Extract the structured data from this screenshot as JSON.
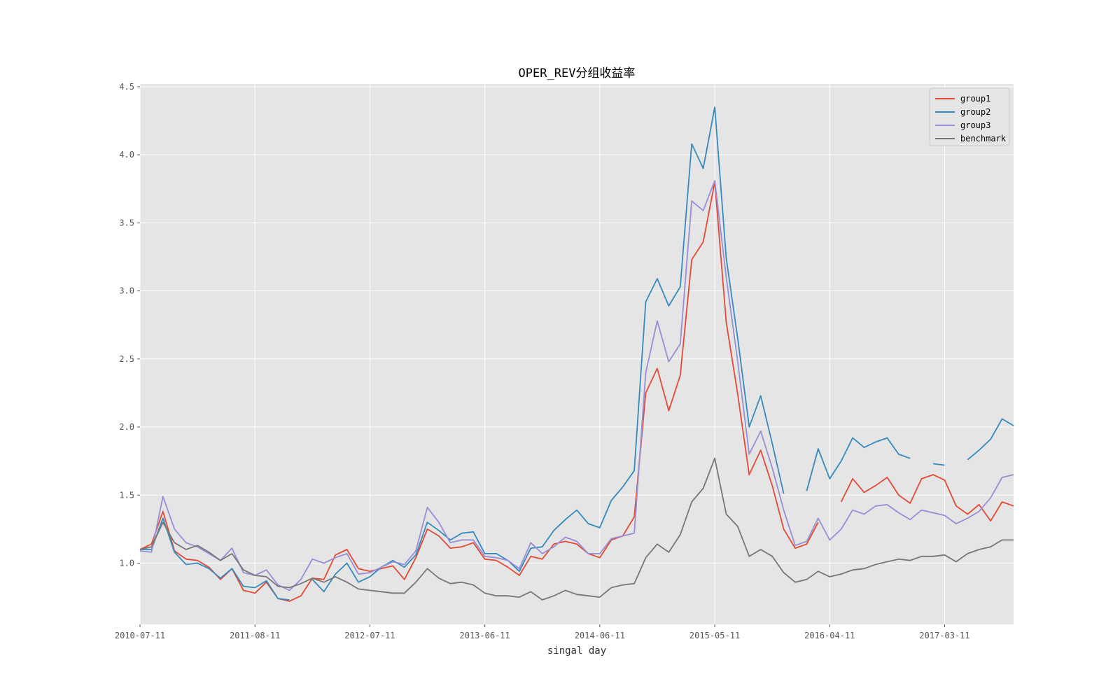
{
  "chart_data": {
    "type": "line",
    "title": "OPER_REV分组收益率",
    "xlabel": "singal day",
    "ylabel": "",
    "x_tick_labels": [
      "2010-07-11",
      "2011-08-11",
      "2012-07-11",
      "2013-06-11",
      "2014-06-11",
      "2015-05-11",
      "2016-04-11",
      "2017-03-11"
    ],
    "x_tick_index": [
      0,
      10,
      20,
      30,
      40,
      50,
      60,
      70
    ],
    "xlim": [
      0,
      76
    ],
    "y_ticks": [
      1.0,
      1.5,
      2.0,
      2.5,
      3.0,
      3.5,
      4.0,
      4.5
    ],
    "ylim": [
      0.55,
      4.52
    ],
    "grid": true,
    "legend_position": "top-right",
    "series": [
      {
        "name": "group1",
        "color": "#E24A33",
        "values": [
          1.1,
          1.14,
          1.38,
          1.09,
          1.03,
          1.02,
          0.97,
          0.88,
          0.96,
          0.8,
          0.78,
          0.86,
          0.74,
          0.72,
          0.76,
          0.89,
          0.88,
          1.06,
          1.1,
          0.96,
          0.94,
          0.96,
          0.98,
          0.88,
          1.04,
          1.25,
          1.2,
          1.11,
          1.12,
          1.15,
          1.03,
          1.02,
          0.97,
          0.91,
          1.05,
          1.03,
          1.14,
          1.16,
          1.14,
          1.07,
          1.04,
          1.17,
          1.2,
          1.34,
          2.25,
          2.43,
          2.12,
          2.38,
          3.23,
          3.36,
          3.8,
          2.77,
          2.24,
          1.65,
          1.83,
          1.57,
          1.25,
          1.11,
          1.14,
          1.3,
          null,
          1.45,
          1.62,
          1.52,
          1.57,
          1.63,
          1.5,
          1.44,
          1.62,
          1.65,
          1.61,
          1.42,
          1.36,
          1.43,
          1.31,
          1.45,
          1.42
        ]
      },
      {
        "name": "group2",
        "color": "#348ABD",
        "values": [
          1.1,
          1.1,
          1.33,
          1.08,
          0.99,
          1.0,
          0.96,
          0.89,
          0.96,
          0.83,
          0.82,
          0.87,
          0.74,
          0.73,
          null,
          0.88,
          0.79,
          0.92,
          1.0,
          0.86,
          0.9,
          0.97,
          1.02,
          0.97,
          1.06,
          1.3,
          1.24,
          1.17,
          1.22,
          1.23,
          1.07,
          1.07,
          1.02,
          0.94,
          1.11,
          1.12,
          1.24,
          1.32,
          1.39,
          1.29,
          1.26,
          1.46,
          1.56,
          1.68,
          2.92,
          3.09,
          2.89,
          3.03,
          4.08,
          3.9,
          4.35,
          3.24,
          2.65,
          2.0,
          2.23,
          1.88,
          1.51,
          null,
          1.53,
          1.84,
          1.62,
          1.75,
          1.92,
          1.85,
          1.89,
          1.92,
          1.8,
          1.77,
          null,
          1.73,
          1.72,
          null,
          1.76,
          1.83,
          1.91,
          2.06,
          2.01
        ]
      },
      {
        "name": "group3",
        "color": "#988ED5",
        "values": [
          1.09,
          1.08,
          1.49,
          1.25,
          1.15,
          1.12,
          1.07,
          1.02,
          1.11,
          0.93,
          0.91,
          0.95,
          0.84,
          0.8,
          0.88,
          1.03,
          1.0,
          1.04,
          1.07,
          0.92,
          0.93,
          0.97,
          1.01,
          0.99,
          1.09,
          1.41,
          1.3,
          1.15,
          1.17,
          1.17,
          1.05,
          1.04,
          1.02,
          0.96,
          1.15,
          1.07,
          1.12,
          1.19,
          1.16,
          1.07,
          1.07,
          1.18,
          1.2,
          1.22,
          2.4,
          2.78,
          2.48,
          2.61,
          3.66,
          3.59,
          3.81,
          3.1,
          2.48,
          1.8,
          1.97,
          1.7,
          1.39,
          1.13,
          1.16,
          1.33,
          1.17,
          1.25,
          1.39,
          1.36,
          1.42,
          1.43,
          1.37,
          1.32,
          1.39,
          1.37,
          1.35,
          1.29,
          1.33,
          1.38,
          1.48,
          1.63,
          1.65
        ]
      },
      {
        "name": "benchmark",
        "color": "#777777",
        "values": [
          1.1,
          1.12,
          1.3,
          1.15,
          1.1,
          1.13,
          1.08,
          1.02,
          1.07,
          0.95,
          0.91,
          0.9,
          0.83,
          0.82,
          0.85,
          0.89,
          0.86,
          0.9,
          0.86,
          0.81,
          0.8,
          0.79,
          0.78,
          0.78,
          0.86,
          0.96,
          0.89,
          0.85,
          0.86,
          0.84,
          0.78,
          0.76,
          0.76,
          0.75,
          0.79,
          0.73,
          0.76,
          0.8,
          0.77,
          0.76,
          0.75,
          0.82,
          0.84,
          0.85,
          1.04,
          1.14,
          1.08,
          1.21,
          1.45,
          1.55,
          1.77,
          1.36,
          1.27,
          1.05,
          1.1,
          1.05,
          0.93,
          0.86,
          0.88,
          0.94,
          0.9,
          0.92,
          0.95,
          0.96,
          0.99,
          1.01,
          1.03,
          1.02,
          1.05,
          1.05,
          1.06,
          1.01,
          1.07,
          1.1,
          1.12,
          1.17,
          1.17
        ]
      }
    ]
  },
  "colors": {
    "plot_background": "#E5E5E5",
    "grid": "#FFFFFF",
    "figure_background": "#FFFFFF"
  }
}
